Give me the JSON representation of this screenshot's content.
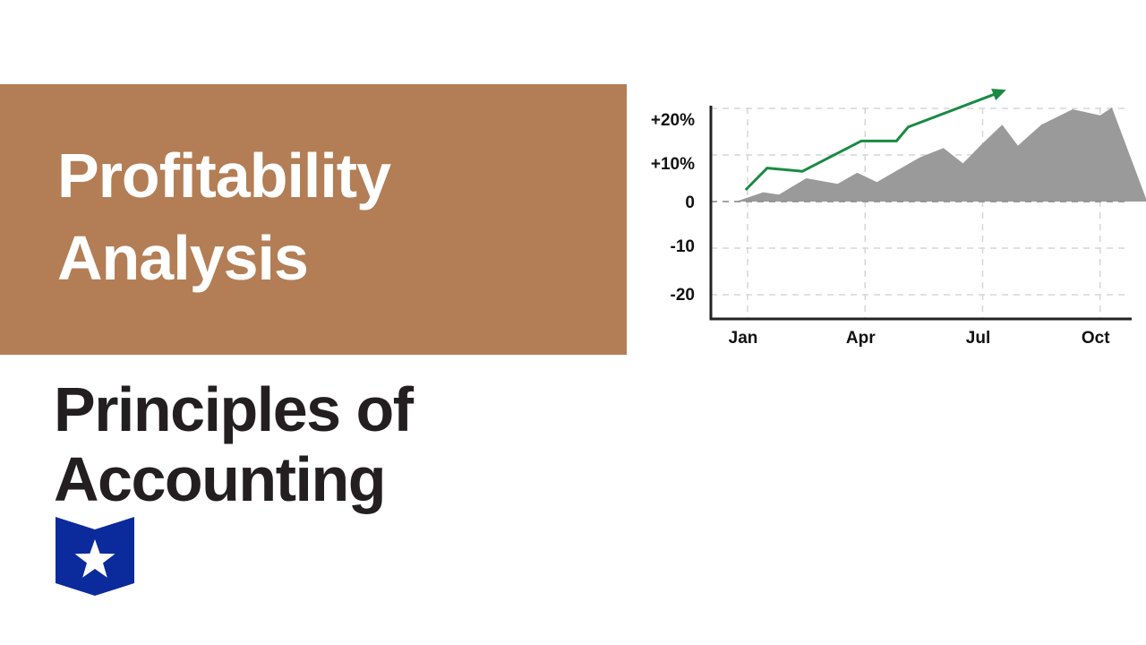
{
  "banner": {
    "title_line1": "Profitability",
    "title_line2": "Analysis",
    "color": "#b37e55"
  },
  "course": {
    "title_line1": "Principles of",
    "title_line2": "Accounting"
  },
  "logo": {
    "icon": "star-book-icon",
    "color": "#0b2a9c"
  },
  "chart_data": {
    "type": "area",
    "title": "",
    "xlabel": "",
    "ylabel": "",
    "x_ticks": [
      "Jan",
      "Apr",
      "Jul",
      "Oct"
    ],
    "y_ticks": [
      "+20%",
      "+10%",
      "0",
      "-10",
      "-20"
    ],
    "ylim": [
      -25,
      20
    ],
    "xlim": [
      0,
      10.6
    ],
    "grid": true,
    "area_color": "#9a9a9a",
    "line_color": "#1a8a43",
    "series": [
      {
        "x": [
          -0.3,
          0.4,
          0.8,
          1.5,
          2.3,
          2.8,
          3.3,
          4.4,
          5.0,
          5.5,
          6.0,
          6.5,
          6.9,
          7.5,
          8.3,
          9.0,
          9.3,
          10.2
        ],
        "values": [
          0,
          2,
          1.5,
          5,
          3.8,
          6.2,
          4.2,
          9.5,
          11.5,
          8.2,
          12.5,
          16.5,
          12,
          16.5,
          19.8,
          18.5,
          20.2,
          0
        ]
      },
      {
        "x": [
          -0.05,
          0.5,
          1.4,
          2.9,
          3.8,
          4.1,
          6.6
        ],
        "values": [
          2.5,
          7.2,
          6.5,
          13,
          13,
          16,
          24
        ]
      }
    ]
  }
}
